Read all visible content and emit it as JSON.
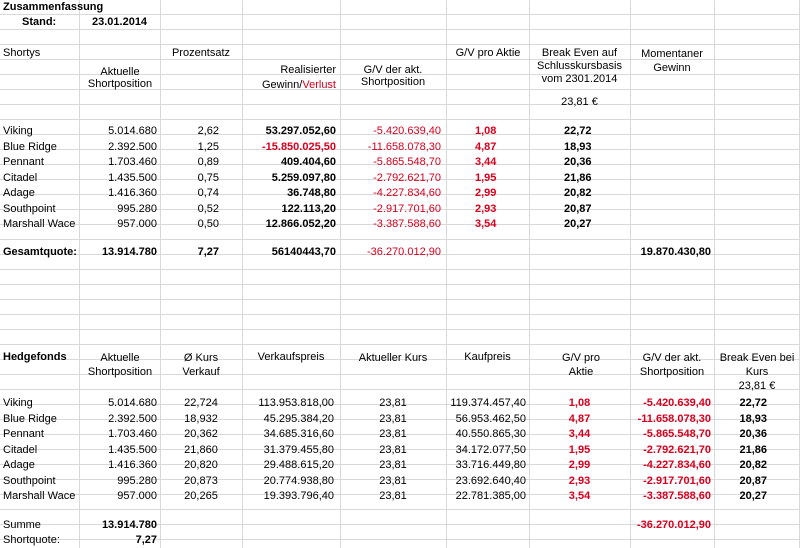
{
  "summary": {
    "title": "Zusammenfassung",
    "stand_label": "Stand:",
    "stand_date": "23.01.2014"
  },
  "shortys": {
    "section_label": "Shortys",
    "headers": {
      "position": "Aktuelle Shortposition",
      "percent": "Prozentsatz",
      "realized": "Realisierter",
      "realized_line2a": "Gewinn/",
      "realized_line2b": "Verlust",
      "gv_akt": "G/V der akt. Shortposition",
      "gv_pro": "G/V pro Aktie",
      "break_even": "Break Even auf Schlusskursbasis vom 2301.2014",
      "break_even_price": "23,81 €",
      "momentan": "Momentaner Gewinn"
    },
    "rows": [
      {
        "name": "Viking",
        "position": "5.014.680",
        "percent": "2,62",
        "realized": "53.297.052,60",
        "realized_neg": false,
        "gv_akt": "-5.420.639,40",
        "gv_pro": "1,08",
        "break_even": "22,72"
      },
      {
        "name": "Blue Ridge",
        "position": "2.392.500",
        "percent": "1,25",
        "realized": "-15.850.025,50",
        "realized_neg": true,
        "gv_akt": "-11.658.078,30",
        "gv_pro": "4,87",
        "break_even": "18,93"
      },
      {
        "name": "Pennant",
        "position": "1.703.460",
        "percent": "0,89",
        "realized": "409.404,60",
        "realized_neg": false,
        "gv_akt": "-5.865.548,70",
        "gv_pro": "3,44",
        "break_even": "20,36"
      },
      {
        "name": "Citadel",
        "position": "1.435.500",
        "percent": "0,75",
        "realized": "5.259.097,80",
        "realized_neg": false,
        "gv_akt": "-2.792.621,70",
        "gv_pro": "1,95",
        "break_even": "21,86"
      },
      {
        "name": "Adage",
        "position": "1.416.360",
        "percent": "0,74",
        "realized": "36.748,80",
        "realized_neg": false,
        "gv_akt": "-4.227.834,60",
        "gv_pro": "2,99",
        "break_even": "20,82"
      },
      {
        "name": "Southpoint",
        "position": "995.280",
        "percent": "0,52",
        "realized": "122.113,20",
        "realized_neg": false,
        "gv_akt": "-2.917.701,60",
        "gv_pro": "2,93",
        "break_even": "20,87"
      },
      {
        "name": "Marshall Wace",
        "position": "957.000",
        "percent": "0,50",
        "realized": "12.866.052,20",
        "realized_neg": false,
        "gv_akt": "-3.387.588,60",
        "gv_pro": "3,54",
        "break_even": "20,27"
      }
    ],
    "total": {
      "label": "Gesamtquote:",
      "position": "13.914.780",
      "percent": "7,27",
      "realized": "56140443,70",
      "gv_akt": "-36.270.012,90",
      "momentan": "19.870.430,80"
    }
  },
  "hedgefonds": {
    "section_label": "Hedgefonds",
    "headers": {
      "position": "Aktuelle Shortposition",
      "kurs": "Ø Kurs Verkauf",
      "verkaufspreis": "Verkaufspreis",
      "akt_kurs": "Aktueller Kurs",
      "kaufpreis": "Kaufpreis",
      "gv_pro": "G/V pro Aktie",
      "gv_akt": "G/V der akt. Shortposition",
      "break_even": "Break Even bei Kurs",
      "break_even_price": "23,81 €"
    },
    "rows": [
      {
        "name": "Viking",
        "position": "5.014.680",
        "kurs": "22,724",
        "verkaufspreis": "113.953.818,00",
        "akt_kurs": "23,81",
        "kaufpreis": "119.374.457,40",
        "gv_pro": "1,08",
        "gv_akt": "-5.420.639,40",
        "break_even": "22,72"
      },
      {
        "name": "Blue Ridge",
        "position": "2.392.500",
        "kurs": "18,932",
        "verkaufspreis": "45.295.384,20",
        "akt_kurs": "23,81",
        "kaufpreis": "56.953.462,50",
        "gv_pro": "4,87",
        "gv_akt": "-11.658.078,30",
        "break_even": "18,93"
      },
      {
        "name": "Pennant",
        "position": "1.703.460",
        "kurs": "20,362",
        "verkaufspreis": "34.685.316,60",
        "akt_kurs": "23,81",
        "kaufpreis": "40.550.865,30",
        "gv_pro": "3,44",
        "gv_akt": "-5.865.548,70",
        "break_even": "20,36"
      },
      {
        "name": "Citadel",
        "position": "1.435.500",
        "kurs": "21,860",
        "verkaufspreis": "31.379.455,80",
        "akt_kurs": "23,81",
        "kaufpreis": "34.172.077,50",
        "gv_pro": "1,95",
        "gv_akt": "-2.792.621,70",
        "break_even": "21,86"
      },
      {
        "name": "Adage",
        "position": "1.416.360",
        "kurs": "20,820",
        "verkaufspreis": "29.488.615,20",
        "akt_kurs": "23,81",
        "kaufpreis": "33.716.449,80",
        "gv_pro": "2,99",
        "gv_akt": "-4.227.834,60",
        "break_even": "20,82"
      },
      {
        "name": "Southpoint",
        "position": "995.280",
        "kurs": "20,873",
        "verkaufspreis": "20.774.938,80",
        "akt_kurs": "23,81",
        "kaufpreis": "23.692.640,40",
        "gv_pro": "2,93",
        "gv_akt": "-2.917.701,60",
        "break_even": "20,87"
      },
      {
        "name": "Marshall Wace",
        "position": "957.000",
        "kurs": "20,265",
        "verkaufspreis": "19.393.796,40",
        "akt_kurs": "23,81",
        "kaufpreis": "22.781.385,00",
        "gv_pro": "3,54",
        "gv_akt": "-3.387.588,60",
        "break_even": "20,27"
      }
    ],
    "summe": {
      "label": "Summe",
      "position": "13.914.780",
      "gv_akt": "-36.270.012,90"
    },
    "shortquote": {
      "label": "Shortquote:",
      "value": "7,27"
    }
  },
  "colors": {
    "negative": "#d8001e",
    "gridline": "#d9d9d9"
  }
}
